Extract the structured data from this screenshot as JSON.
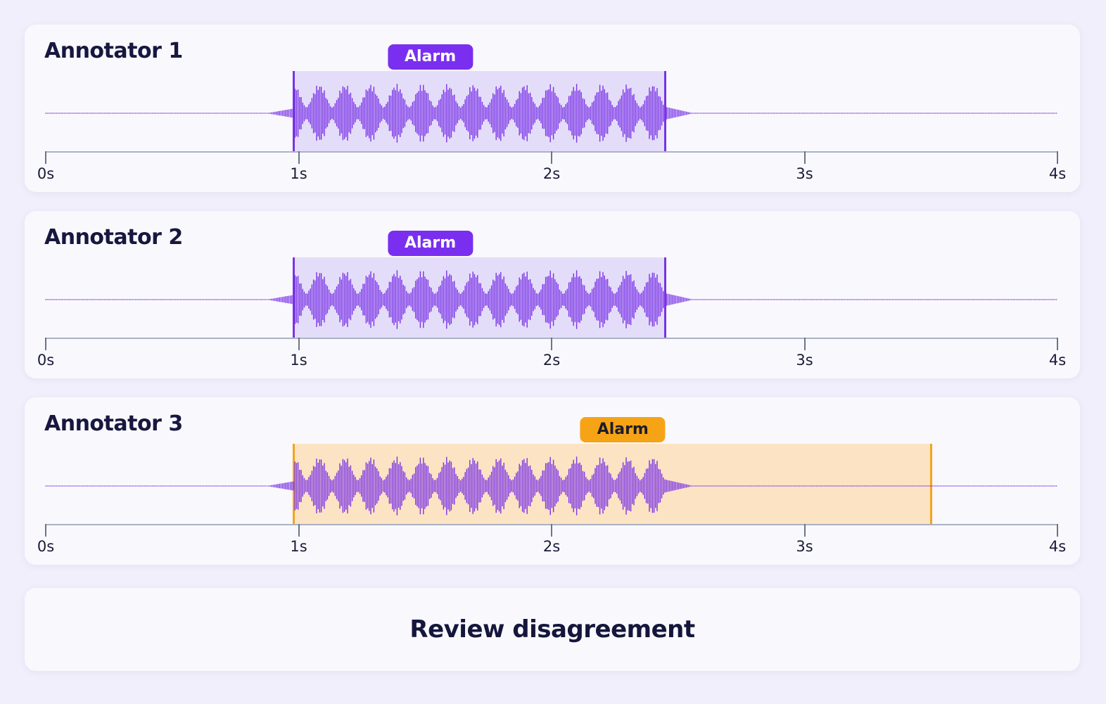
{
  "timeline": {
    "ticks": [
      "0s",
      "1s",
      "2s",
      "3s",
      "4s"
    ],
    "duration_s": 4
  },
  "annotators": [
    {
      "name": "Annotator 1",
      "label": "Alarm",
      "start_s": 0.98,
      "end_s": 2.45,
      "status": "agree",
      "color": "#7a2ff0"
    },
    {
      "name": "Annotator 2",
      "label": "Alarm",
      "start_s": 0.98,
      "end_s": 2.45,
      "status": "agree",
      "color": "#7a2ff0"
    },
    {
      "name": "Annotator 3",
      "label": "Alarm",
      "start_s": 0.98,
      "end_s": 3.5,
      "status": "disagree",
      "color": "#f7a316"
    }
  ],
  "waveform": {
    "signal_start_s": 0.98,
    "signal_end_s": 2.45,
    "color": "#7a33e6"
  },
  "footer": {
    "action_label": "Review disagreement"
  }
}
